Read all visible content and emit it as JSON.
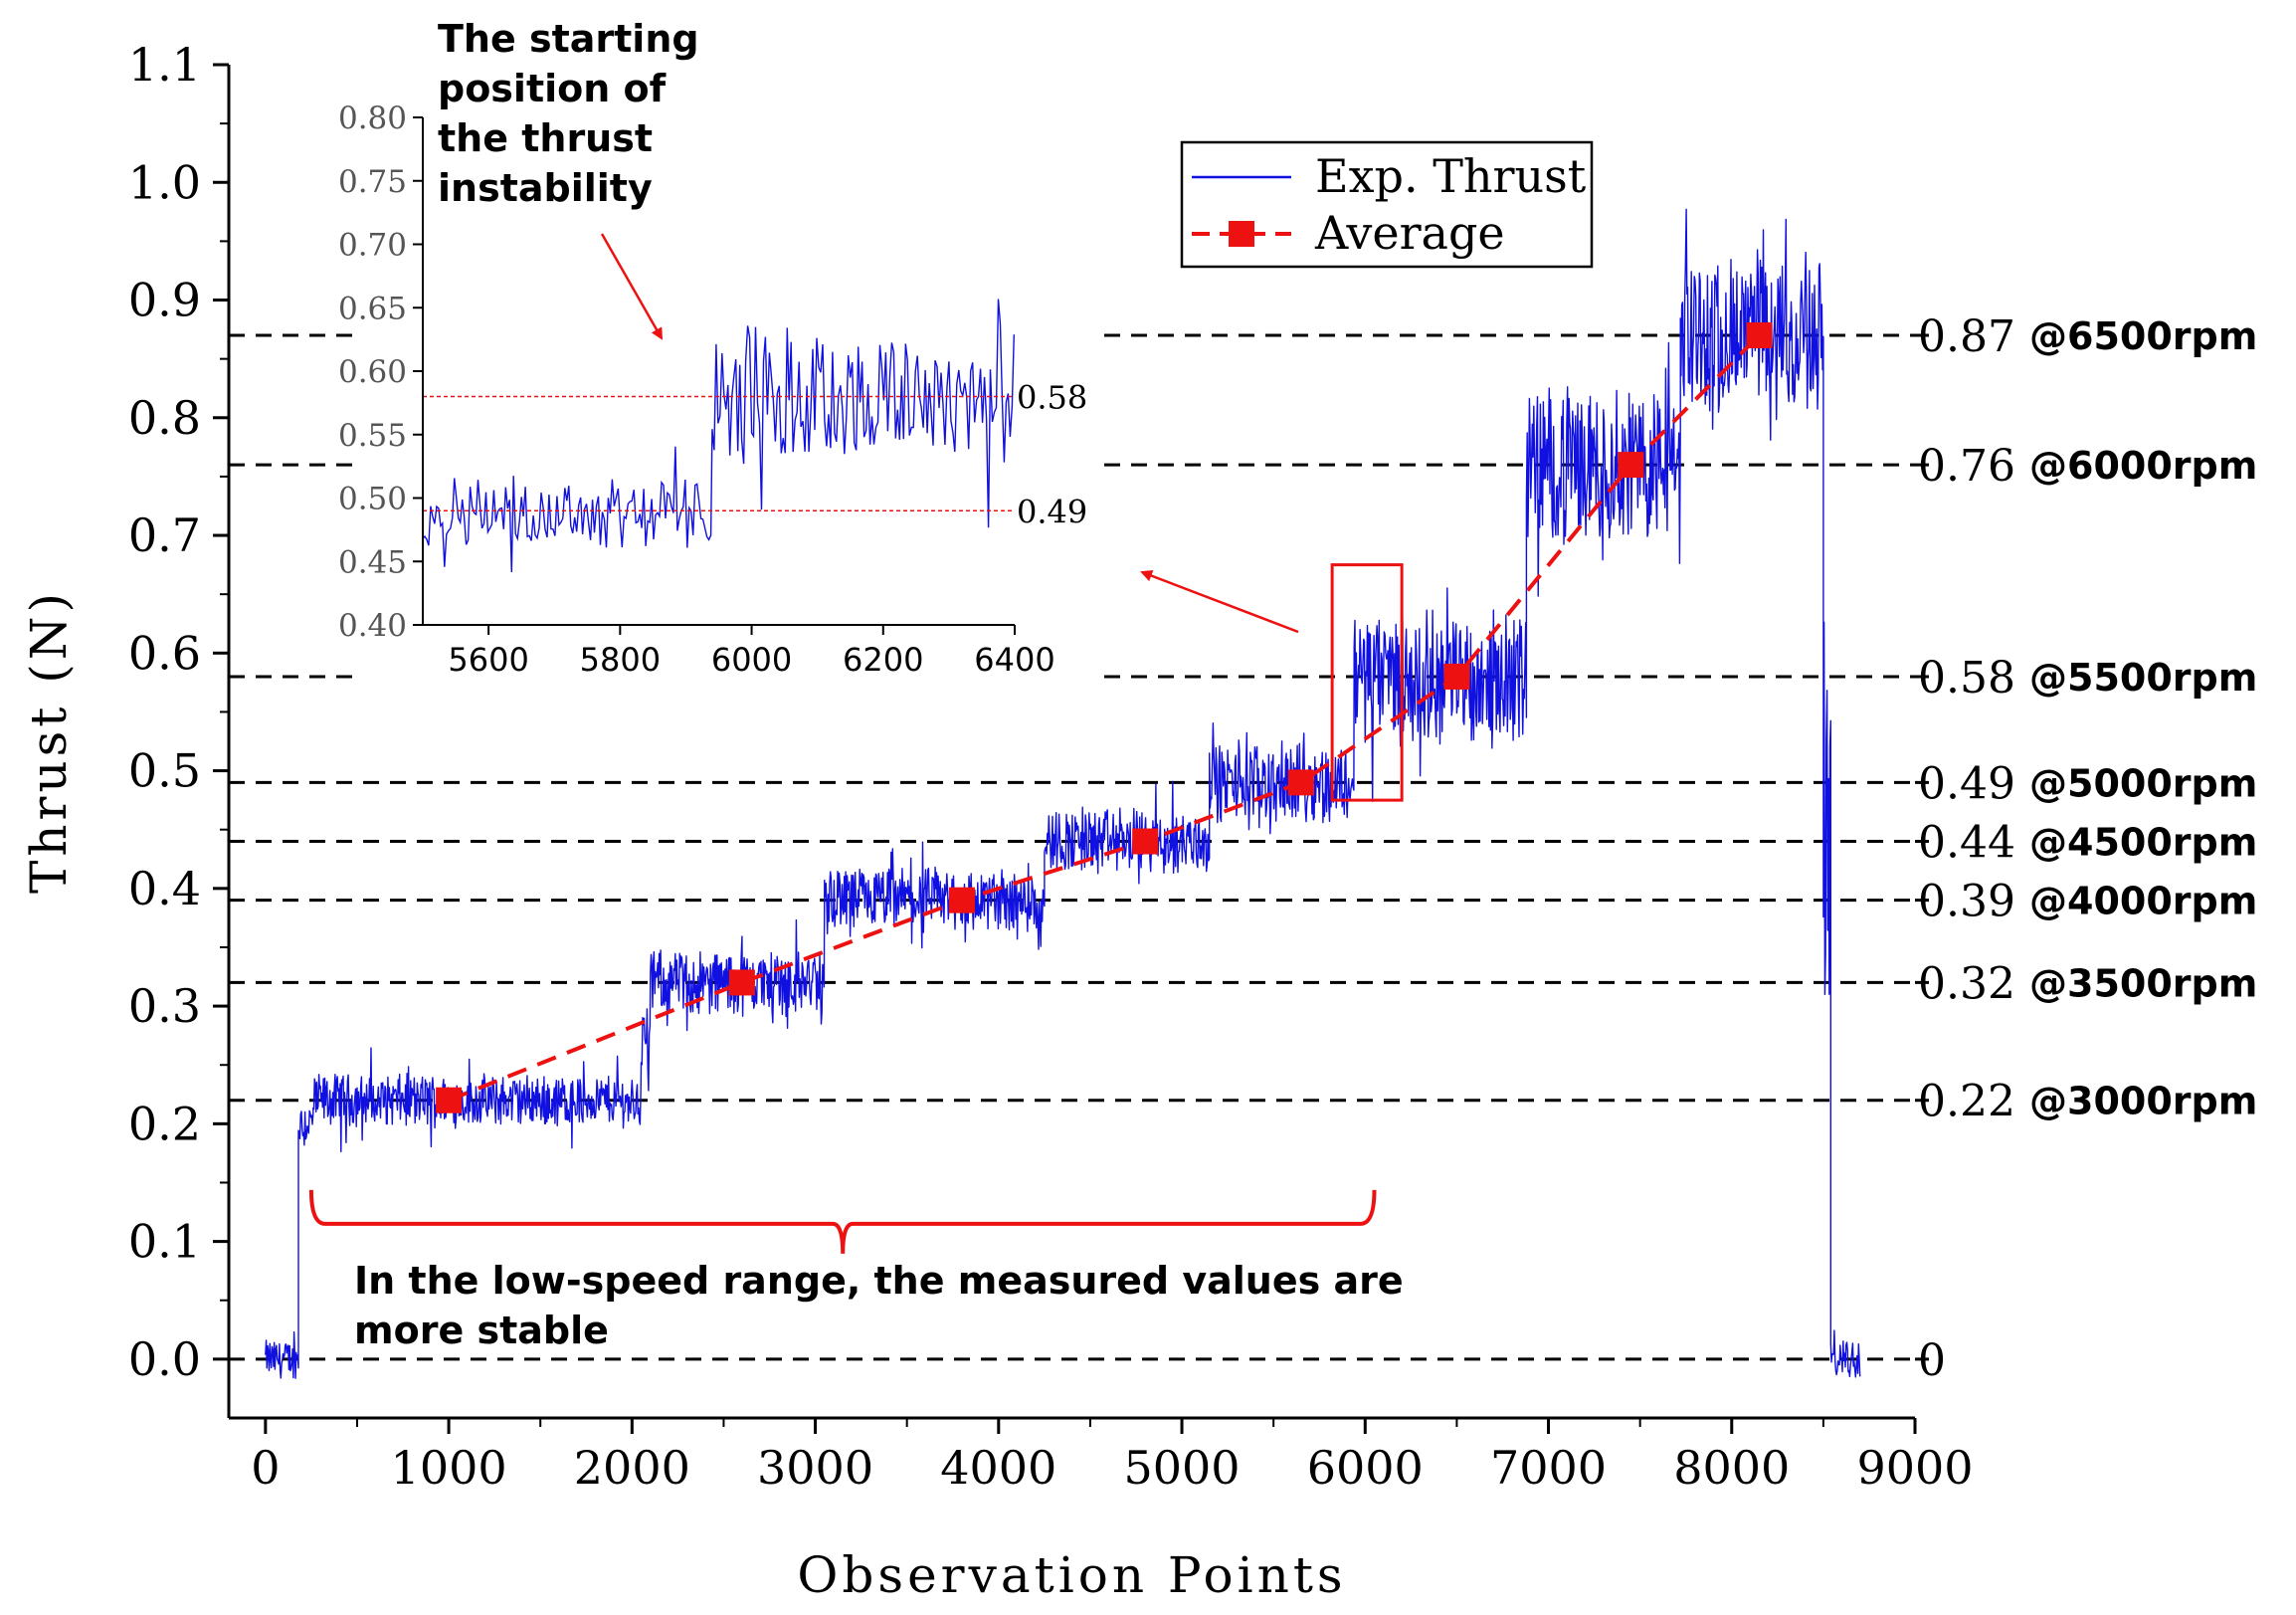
{
  "chart_data": {
    "type": "line",
    "xlabel": "Observation Points",
    "ylabel": "Thrust (N)",
    "xlim": [
      -200,
      9000
    ],
    "ylim": [
      -0.05,
      1.1
    ],
    "xticks": [
      0,
      1000,
      2000,
      3000,
      4000,
      5000,
      6000,
      7000,
      8000,
      9000
    ],
    "yticks": [
      "0.0",
      "0.1",
      "0.2",
      "0.3",
      "0.4",
      "0.5",
      "0.6",
      "0.7",
      "0.8",
      "0.9",
      "1.0",
      "1.1"
    ],
    "legend": {
      "position": "top-right",
      "entries": [
        "Exp. Thrust",
        "Average"
      ]
    },
    "series": [
      {
        "name": "Exp. Thrust",
        "color": "#1010e0",
        "style": "solid",
        "segments": [
          {
            "from": 0,
            "to": 180,
            "level": 0.0,
            "noise": 0.015
          },
          {
            "from": 180,
            "to": 260,
            "level": 0.2,
            "noise": 0.02
          },
          {
            "from": 260,
            "to": 2050,
            "level": 0.22,
            "noise": 0.02
          },
          {
            "from": 2050,
            "to": 2100,
            "level": 0.27,
            "noise": 0.03
          },
          {
            "from": 2100,
            "to": 3050,
            "level": 0.32,
            "noise": 0.025
          },
          {
            "from": 3050,
            "to": 4250,
            "level": 0.39,
            "noise": 0.025
          },
          {
            "from": 4250,
            "to": 5150,
            "level": 0.44,
            "noise": 0.025
          },
          {
            "from": 5150,
            "to": 5940,
            "level": 0.49,
            "noise": 0.03
          },
          {
            "from": 5940,
            "to": 6880,
            "level": 0.58,
            "noise": 0.05
          },
          {
            "from": 6880,
            "to": 7720,
            "level": 0.76,
            "noise": 0.06
          },
          {
            "from": 7720,
            "to": 8500,
            "level": 0.87,
            "noise": 0.06
          },
          {
            "from": 8500,
            "to": 8540,
            "level": 0.45,
            "noise": 0.2
          },
          {
            "from": 8540,
            "to": 8700,
            "level": 0.0,
            "noise": 0.015
          }
        ]
      },
      {
        "name": "Average",
        "color": "#ee1111",
        "style": "dashed-square-markers",
        "x": [
          1000,
          2600,
          3800,
          4800,
          5650,
          6500,
          7450,
          8150
        ],
        "y": [
          0.22,
          0.32,
          0.39,
          0.44,
          0.49,
          0.58,
          0.76,
          0.87
        ]
      }
    ],
    "reference_lines": [
      {
        "value": 0.87,
        "label": "0.87",
        "suffix": "@6500rpm"
      },
      {
        "value": 0.76,
        "label": "0.76",
        "suffix": "@6000rpm"
      },
      {
        "value": 0.58,
        "label": "0.58",
        "suffix": "@5500rpm"
      },
      {
        "value": 0.49,
        "label": "0.49",
        "suffix": "@5000rpm"
      },
      {
        "value": 0.44,
        "label": "0.44",
        "suffix": "@4500rpm"
      },
      {
        "value": 0.39,
        "label": "0.39",
        "suffix": "@4000rpm"
      },
      {
        "value": 0.32,
        "label": "0.32",
        "suffix": "@3500rpm"
      },
      {
        "value": 0.22,
        "label": "0.22",
        "suffix": "@3000rpm"
      },
      {
        "value": 0.0,
        "label": "0",
        "suffix": ""
      }
    ],
    "highlight_box": {
      "x": [
        5820,
        6200
      ],
      "y": [
        0.475,
        0.675
      ]
    },
    "brace": {
      "x": [
        250,
        6050
      ],
      "y": 0.115
    },
    "annotations": [
      {
        "id": "instability",
        "text": [
          "The starting",
          "position of",
          "the thrust",
          "instability"
        ]
      },
      {
        "id": "lowspeed",
        "text": [
          "In the low-speed range, the measured values are",
          "more stable"
        ]
      }
    ],
    "inset": {
      "xlim": [
        5500,
        6400
      ],
      "ylim": [
        0.4,
        0.8
      ],
      "xticks": [
        "5600",
        "5800",
        "6000",
        "6200",
        "6400"
      ],
      "yticks": [
        "0.40",
        "0.45",
        "0.50",
        "0.55",
        "0.60",
        "0.65",
        "0.70",
        "0.75",
        "0.80"
      ],
      "ref_lines": [
        {
          "value": 0.58,
          "label": "0.58"
        },
        {
          "value": 0.49,
          "label": "0.49"
        }
      ],
      "segments": [
        {
          "from": 5500,
          "to": 5940,
          "level": 0.49,
          "noise": 0.025
        },
        {
          "from": 5940,
          "to": 6400,
          "level": 0.58,
          "noise": 0.05
        }
      ]
    }
  }
}
